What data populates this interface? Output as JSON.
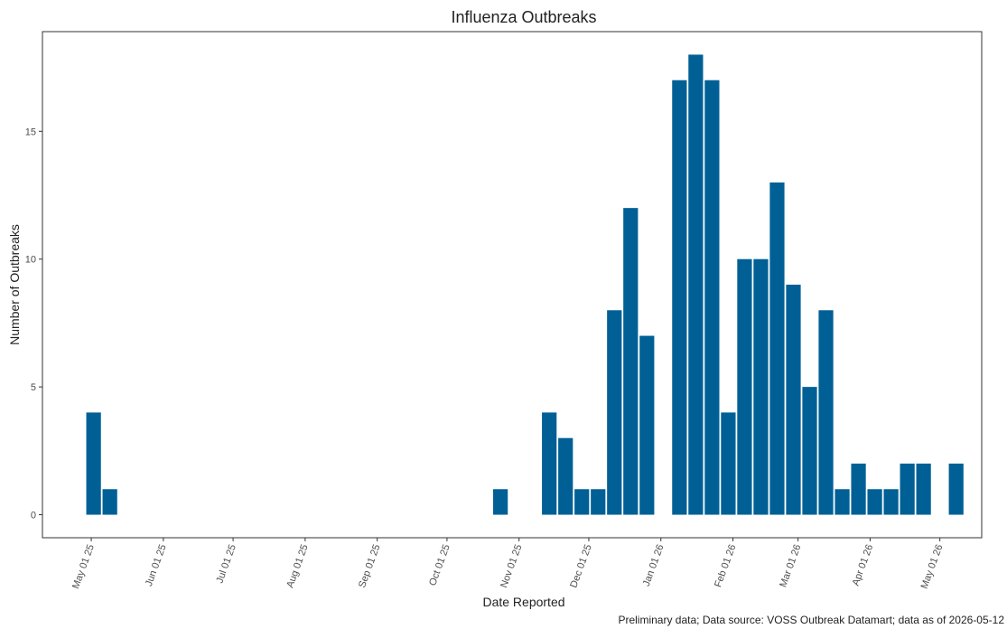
{
  "chart_data": {
    "type": "bar",
    "title": "Influenza Outbreaks",
    "x_label": "Date Reported",
    "y_label": "Number of Outbreaks",
    "caption": "Preliminary data; Data source: VOSS Outbreak Datamart; data as of 2026-05-12",
    "x": [
      "2025-05-02",
      "2025-05-09",
      "2025-10-24",
      "2025-11-14",
      "2025-11-21",
      "2025-11-28",
      "2025-12-05",
      "2025-12-12",
      "2025-12-19",
      "2025-12-26",
      "2026-01-09",
      "2026-01-16",
      "2026-01-23",
      "2026-01-30",
      "2026-02-06",
      "2026-02-13",
      "2026-02-20",
      "2026-02-27",
      "2026-03-06",
      "2026-03-13",
      "2026-03-20",
      "2026-03-27",
      "2026-04-03",
      "2026-04-10",
      "2026-04-17",
      "2026-04-24",
      "2026-05-08"
    ],
    "values": [
      4,
      1,
      1,
      4,
      3,
      1,
      1,
      8,
      12,
      7,
      17,
      18,
      17,
      4,
      10,
      10,
      13,
      9,
      5,
      8,
      1,
      2,
      1,
      1,
      2,
      2,
      2
    ],
    "color": "#006096",
    "xlim": [
      "2025-04-10",
      "2026-05-19"
    ],
    "xticks": [
      {
        "value": "2025-05-01",
        "label": "May 01 25"
      },
      {
        "value": "2025-06-01",
        "label": "Jun 01 25"
      },
      {
        "value": "2025-07-01",
        "label": "Jul 01 25"
      },
      {
        "value": "2025-08-01",
        "label": "Aug 01 25"
      },
      {
        "value": "2025-09-01",
        "label": "Sep 01 25"
      },
      {
        "value": "2025-10-01",
        "label": "Oct 01 25"
      },
      {
        "value": "2025-11-01",
        "label": "Nov 01 25"
      },
      {
        "value": "2025-12-01",
        "label": "Dec 01 25"
      },
      {
        "value": "2026-01-01",
        "label": "Jan 01 26"
      },
      {
        "value": "2026-02-01",
        "label": "Feb 01 26"
      },
      {
        "value": "2026-03-01",
        "label": "Mar 01 26"
      },
      {
        "value": "2026-04-01",
        "label": "Apr 01 26"
      },
      {
        "value": "2026-05-01",
        "label": "May 01 26"
      }
    ],
    "ylim": [
      -0.9,
      18.9
    ],
    "yticks": [
      0,
      5,
      10,
      15
    ],
    "grid": false
  }
}
